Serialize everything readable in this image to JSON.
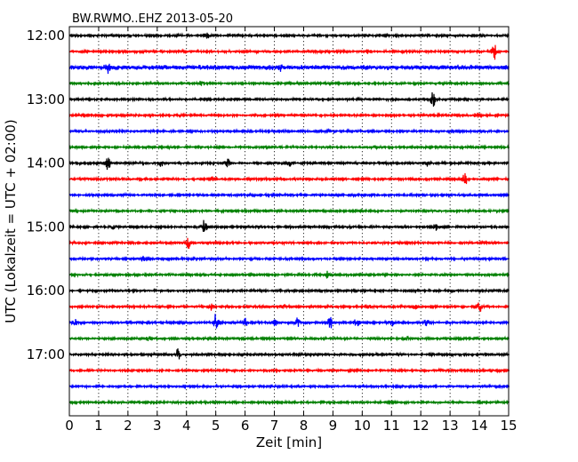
{
  "chart_data": {
    "type": "line",
    "chart_kind": "helicorder",
    "title": "BW.RWMO..EHZ 2013-05-20",
    "xlabel": "Zeit  [min]",
    "ylabel": "UTC (Lokalzeit = UTC + 02:00)",
    "xlim": [
      0,
      15
    ],
    "x_ticks": [
      "0",
      "1",
      "2",
      "3",
      "4",
      "5",
      "6",
      "7",
      "8",
      "9",
      "10",
      "11",
      "12",
      "13",
      "14",
      "15"
    ],
    "x_grid": "vertical dotted",
    "y_tick_labels": [
      "12:00",
      "13:00",
      "14:00",
      "15:00",
      "16:00",
      "17:00"
    ],
    "trace_interval_min": 15,
    "trace_colors": [
      "#000000",
      "#ff0000",
      "#0000ff",
      "#008000"
    ],
    "traces": [
      {
        "start": "12:00",
        "color": "#000000",
        "events": [
          {
            "minute": 4.7,
            "amplitude": 0.3
          }
        ]
      },
      {
        "start": "12:15",
        "color": "#ff0000",
        "events": [
          {
            "minute": 10.2,
            "amplitude": 0.25
          },
          {
            "minute": 14.5,
            "amplitude": 0.9
          }
        ]
      },
      {
        "start": "12:30",
        "color": "#0000ff",
        "noisy": true,
        "events": [
          {
            "minute": 1.3,
            "amplitude": 0.45
          },
          {
            "minute": 7.2,
            "amplitude": 0.35
          }
        ]
      },
      {
        "start": "12:45",
        "color": "#008000",
        "events": [
          {
            "minute": 4.5,
            "amplitude": 0.3
          }
        ]
      },
      {
        "start": "13:00",
        "color": "#000000",
        "events": [
          {
            "minute": 12.4,
            "amplitude": 0.85
          }
        ]
      },
      {
        "start": "13:15",
        "color": "#ff0000",
        "events": [
          {
            "minute": 13.9,
            "amplitude": 0.3
          }
        ]
      },
      {
        "start": "13:30",
        "color": "#0000ff",
        "events": []
      },
      {
        "start": "13:45",
        "color": "#008000",
        "events": []
      },
      {
        "start": "14:00",
        "color": "#000000",
        "events": [
          {
            "minute": 1.3,
            "amplitude": 0.9
          },
          {
            "minute": 3.1,
            "amplitude": 0.5
          },
          {
            "minute": 5.4,
            "amplitude": 0.5
          },
          {
            "minute": 7.5,
            "amplitude": 0.35
          },
          {
            "minute": 12.2,
            "amplitude": 0.3
          }
        ]
      },
      {
        "start": "14:15",
        "color": "#ff0000",
        "events": [
          {
            "minute": 4.9,
            "amplitude": 0.25
          },
          {
            "minute": 13.5,
            "amplitude": 0.6
          }
        ]
      },
      {
        "start": "14:30",
        "color": "#0000ff",
        "events": []
      },
      {
        "start": "14:45",
        "color": "#008000",
        "events": [
          {
            "minute": 9.8,
            "amplitude": 0.2
          }
        ]
      },
      {
        "start": "15:00",
        "color": "#000000",
        "events": [
          {
            "minute": 1.5,
            "amplitude": 0.3
          },
          {
            "minute": 4.6,
            "amplitude": 0.75
          },
          {
            "minute": 12.5,
            "amplitude": 0.3
          }
        ]
      },
      {
        "start": "15:15",
        "color": "#ff0000",
        "events": [
          {
            "minute": 4.05,
            "amplitude": 0.6
          }
        ]
      },
      {
        "start": "15:30",
        "color": "#0000ff",
        "events": [
          {
            "minute": 2.5,
            "amplitude": 0.3
          }
        ]
      },
      {
        "start": "15:45",
        "color": "#008000",
        "events": [
          {
            "minute": 8.8,
            "amplitude": 0.35
          }
        ]
      },
      {
        "start": "16:00",
        "color": "#000000",
        "events": []
      },
      {
        "start": "16:15",
        "color": "#ff0000",
        "events": [
          {
            "minute": 4.8,
            "amplitude": 0.5
          },
          {
            "minute": 7.3,
            "amplitude": 0.45
          },
          {
            "minute": 10.2,
            "amplitude": 0.3
          },
          {
            "minute": 11.8,
            "amplitude": 0.3
          },
          {
            "minute": 14.0,
            "amplitude": 0.5
          }
        ]
      },
      {
        "start": "16:30",
        "color": "#0000ff",
        "events": [
          {
            "minute": 0.2,
            "amplitude": 0.35
          },
          {
            "minute": 5.0,
            "amplitude": 0.95
          },
          {
            "minute": 6.0,
            "amplitude": 0.4
          },
          {
            "minute": 7.0,
            "amplitude": 0.4
          },
          {
            "minute": 7.8,
            "amplitude": 0.55
          },
          {
            "minute": 8.9,
            "amplitude": 0.7
          },
          {
            "minute": 9.8,
            "amplitude": 0.45
          },
          {
            "minute": 11.0,
            "amplitude": 0.35
          },
          {
            "minute": 12.2,
            "amplitude": 0.35
          }
        ]
      },
      {
        "start": "16:45",
        "color": "#008000",
        "events": [
          {
            "minute": 2.7,
            "amplitude": 0.2
          },
          {
            "minute": 11.5,
            "amplitude": 0.2
          }
        ]
      },
      {
        "start": "17:00",
        "color": "#000000",
        "events": [
          {
            "minute": 3.7,
            "amplitude": 0.6
          }
        ]
      },
      {
        "start": "17:15",
        "color": "#ff0000",
        "events": []
      },
      {
        "start": "17:30",
        "color": "#0000ff",
        "events": []
      },
      {
        "start": "17:45",
        "color": "#008000",
        "events": []
      }
    ]
  }
}
